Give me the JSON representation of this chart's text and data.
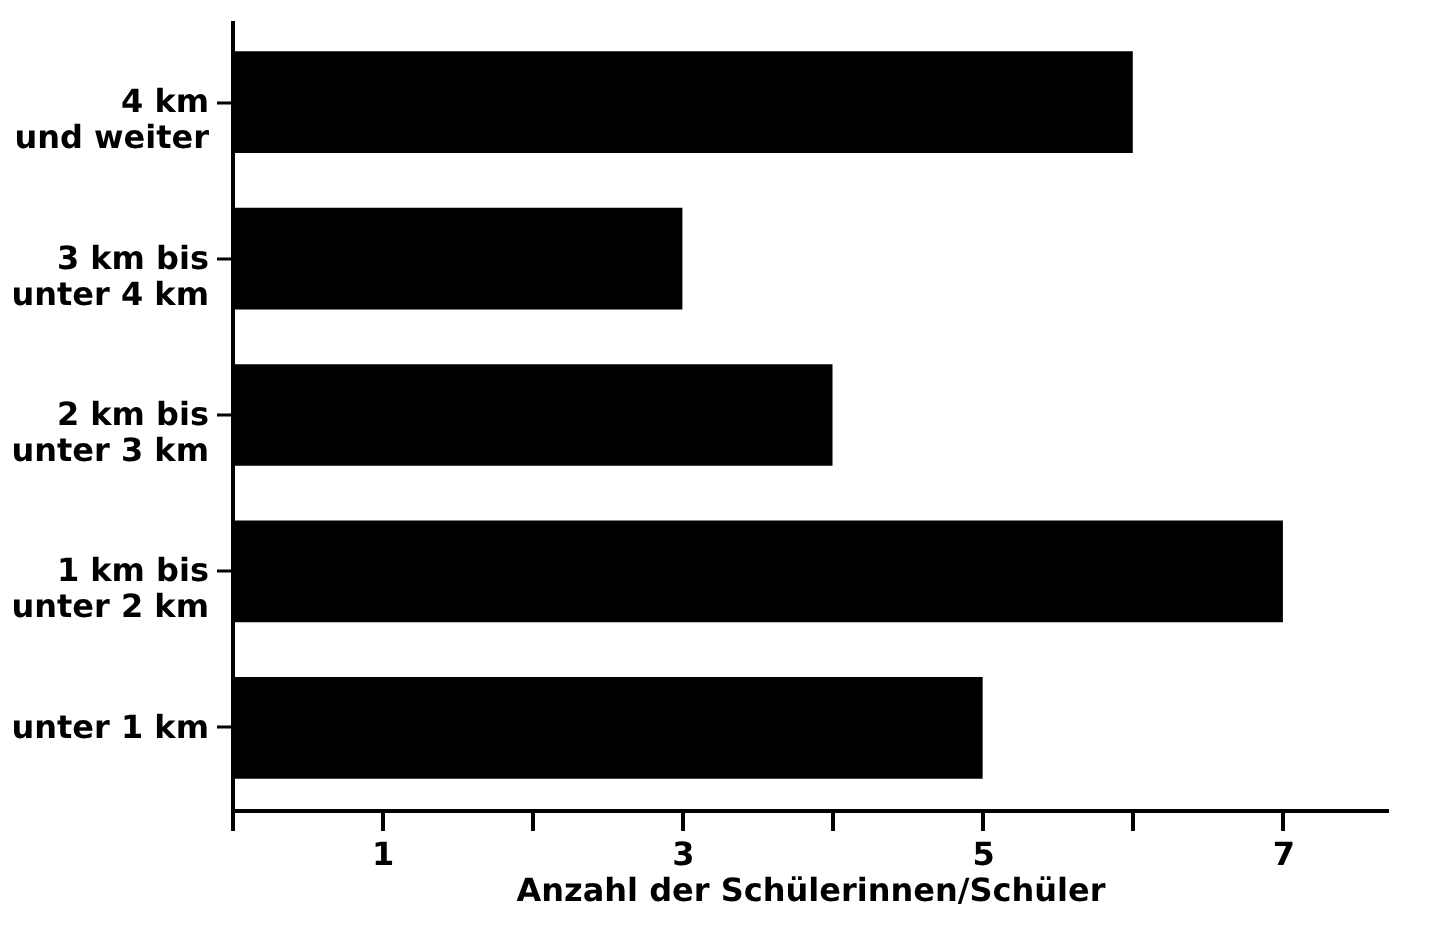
{
  "chart_data": {
    "type": "bar",
    "orientation": "horizontal",
    "xlabel": "Anzahl der Schülerinnen/Schüler",
    "categories": [
      "4 km\nund weiter",
      "3 km bis\nunter 4 km",
      "2 km bis\nunter 3 km",
      "1 km bis\nunter 2 km",
      "unter 1 km"
    ],
    "values": [
      6,
      3,
      4,
      7,
      5
    ],
    "color": "#000000",
    "xlim": [
      0,
      7.7
    ],
    "xticks": [
      {
        "value": 0,
        "label": null
      },
      1,
      {
        "value": 2,
        "label": null
      },
      3,
      {
        "value": 4,
        "label": null
      },
      5,
      {
        "value": 6,
        "label": null
      },
      7
    ],
    "grid": false
  }
}
